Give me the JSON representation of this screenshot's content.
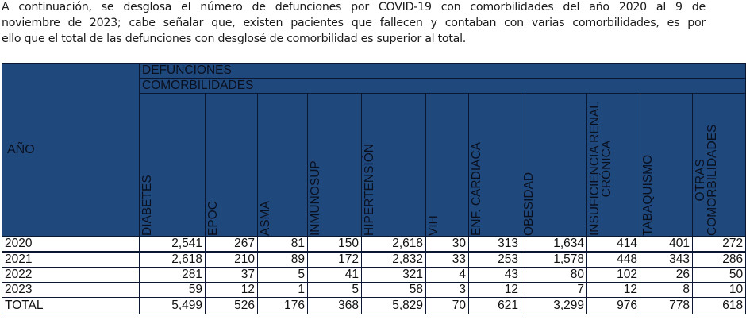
{
  "intro": {
    "lines": [
      "A continuación, se desglosa el número de defunciones por COVID-19 con comorbilidades del año 2020 al 9 de",
      "noviembre de 2023; cabe señalar que, existen pacientes que fallecen y contaban con varias comorbilidades, es por",
      "ello que el total de las defunciones con desglosé de comorbilidad es superior al total."
    ]
  },
  "table": {
    "year_header": "AÑO",
    "group_header": "DEFUNCIONES",
    "subgroup_header": "COMORBILIDADES",
    "columns": [
      "DIABETES",
      "EPOC",
      "ASMA",
      "INMUNOSUP",
      "HIPERTENSIÓN",
      "VIH",
      "ENF. CARDIACA",
      "OBESIDAD",
      "INSUFICIENCIA RENAL|CRÓNICA",
      "TABAQUISMO",
      "OTRAS|COMORBILIDADES"
    ],
    "rows": [
      {
        "year": "2020",
        "values": [
          "2,541",
          "267",
          "81",
          "150",
          "2,618",
          "30",
          "313",
          "1,634",
          "414",
          "401",
          "272"
        ]
      },
      {
        "year": "2021",
        "values": [
          "2,618",
          "210",
          "89",
          "172",
          "2,832",
          "33",
          "253",
          "1,578",
          "448",
          "343",
          "286"
        ]
      },
      {
        "year": "2022",
        "values": [
          "281",
          "37",
          "5",
          "41",
          "321",
          "4",
          "43",
          "80",
          "102",
          "26",
          "50"
        ]
      },
      {
        "year": "2023",
        "values": [
          "59",
          "12",
          "1",
          "5",
          "58",
          "3",
          "12",
          "7",
          "12",
          "8",
          "10"
        ]
      },
      {
        "year": "TOTAL",
        "values": [
          "5,499",
          "526",
          "176",
          "368",
          "5,829",
          "70",
          "621",
          "3,299",
          "976",
          "778",
          "618"
        ]
      }
    ]
  },
  "colors": {
    "header_bg": "#1f497d",
    "border": "#0b1630"
  }
}
